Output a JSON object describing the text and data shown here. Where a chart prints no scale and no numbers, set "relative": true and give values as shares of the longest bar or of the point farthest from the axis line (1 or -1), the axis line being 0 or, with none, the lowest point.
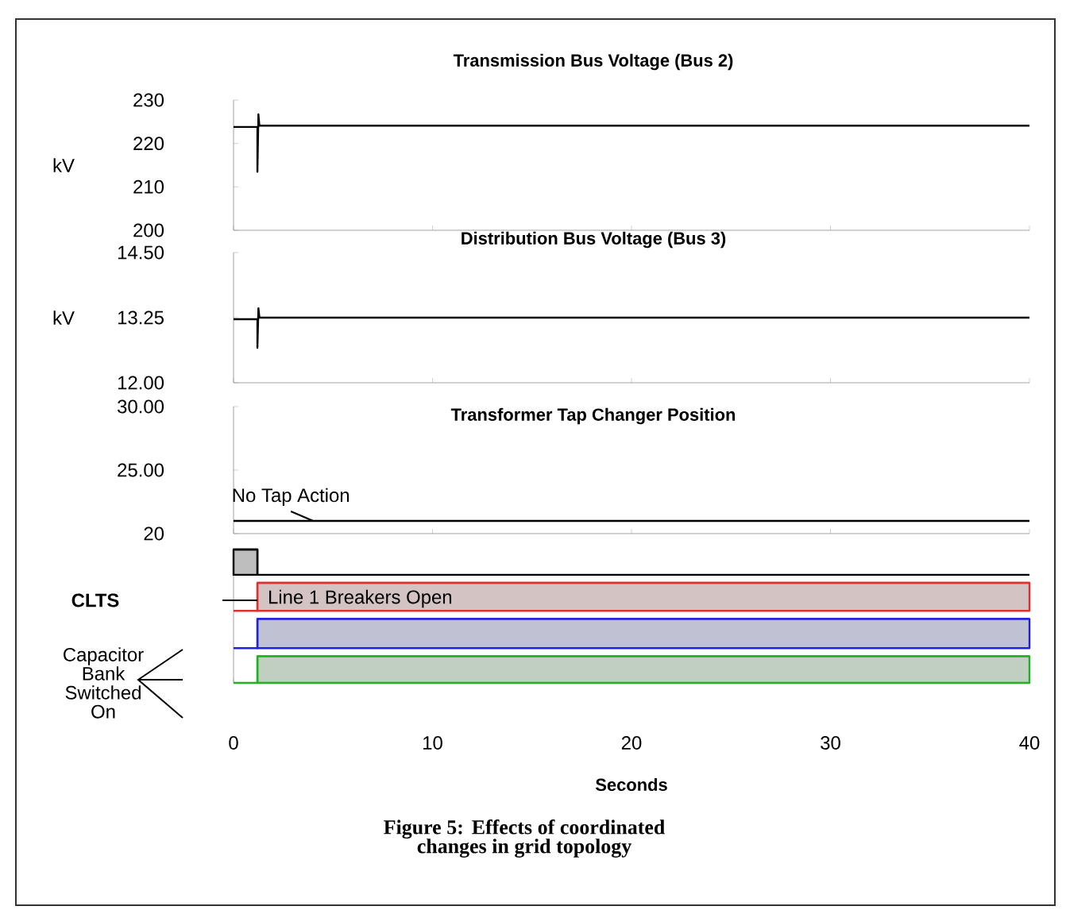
{
  "chart_data": [
    {
      "type": "line",
      "title": "Transmission Bus Voltage (Bus 2)",
      "ylabel": "kV",
      "x": [
        0,
        1.2,
        1.2,
        1.25,
        1.3,
        40
      ],
      "series": [
        {
          "color": "#000000",
          "values": [
            223.8,
            223.8,
            213.5,
            226.7,
            224.1,
            224.1
          ]
        }
      ],
      "xlim": [
        0,
        40
      ],
      "xticks": [
        0,
        10,
        20,
        30,
        40
      ],
      "ylim": [
        200,
        230
      ],
      "yticks": [
        200,
        210,
        220,
        230
      ],
      "tick_labels": "y"
    },
    {
      "type": "line",
      "title": "Distribution Bus Voltage (Bus 3)",
      "ylabel": "kV",
      "x": [
        0,
        1.2,
        1.2,
        1.25,
        1.3,
        40
      ],
      "series": [
        {
          "color": "#000000",
          "values": [
            13.22,
            13.22,
            12.67,
            13.43,
            13.25,
            13.25
          ]
        }
      ],
      "xlim": [
        0,
        40
      ],
      "xticks": [
        0,
        10,
        20,
        30,
        40
      ],
      "ylim": [
        12,
        14.5
      ],
      "yticks": [
        {
          "value": 12,
          "label": "12.00"
        },
        {
          "value": 13.25,
          "label": "13.25"
        },
        {
          "value": 14.5,
          "label": "14.50"
        }
      ],
      "tick_labels": "y"
    },
    {
      "type": "line",
      "title": "Transformer Tap Changer Position",
      "x": [
        0,
        40
      ],
      "series": [
        {
          "color": "#000000",
          "values": [
            21,
            21
          ]
        }
      ],
      "xlim": [
        0,
        40
      ],
      "xticks": [
        0,
        10,
        20,
        30,
        40
      ],
      "ylim": [
        20,
        30
      ],
      "yticks": [
        20,
        {
          "value": 25,
          "label": "25.00"
        },
        {
          "value": 30,
          "label": "30.00"
        }
      ],
      "tick_labels": "y",
      "annotations": [
        {
          "text": "No Tap Action",
          "x": 4,
          "y": 21
        }
      ]
    },
    {
      "type": "line",
      "relative": true,
      "xlabel": "Seconds",
      "x": [
        0,
        1.2,
        1.2,
        40
      ],
      "series": [
        {
          "color": "#000000",
          "values": [
            1,
            1,
            0.81,
            0.81
          ],
          "lower": [
            0.81,
            0.81,
            null,
            null
          ],
          "upper": [
            1,
            1,
            null,
            null
          ]
        },
        {
          "color": "#e03030",
          "values": [
            0.54,
            0.54,
            0.75,
            0.75
          ],
          "lower": [
            null,
            null,
            0.54,
            0.54
          ],
          "upper": [
            null,
            null,
            0.75,
            0.75
          ]
        },
        {
          "color": "#2020e0",
          "values": [
            0.26,
            0.26,
            0.48,
            0.48
          ],
          "lower": [
            null,
            null,
            0.26,
            0.26
          ],
          "upper": [
            null,
            null,
            0.48,
            0.48
          ]
        },
        {
          "color": "#20b020",
          "values": [
            0,
            0,
            0.2,
            0.2
          ],
          "lower": [
            null,
            null,
            0,
            0
          ],
          "upper": [
            null,
            null,
            0.2,
            0.2
          ]
        }
      ],
      "xlim": [
        0,
        40
      ],
      "xticks": [
        0,
        10,
        20,
        30,
        40
      ],
      "tick_labels": "x",
      "annotations": [
        "CLTS",
        "Line 1 Breakers Open",
        "Capacitor Bank Switched On",
        "Figure 5: Effects of coordinated changes in grid topology"
      ]
    }
  ]
}
